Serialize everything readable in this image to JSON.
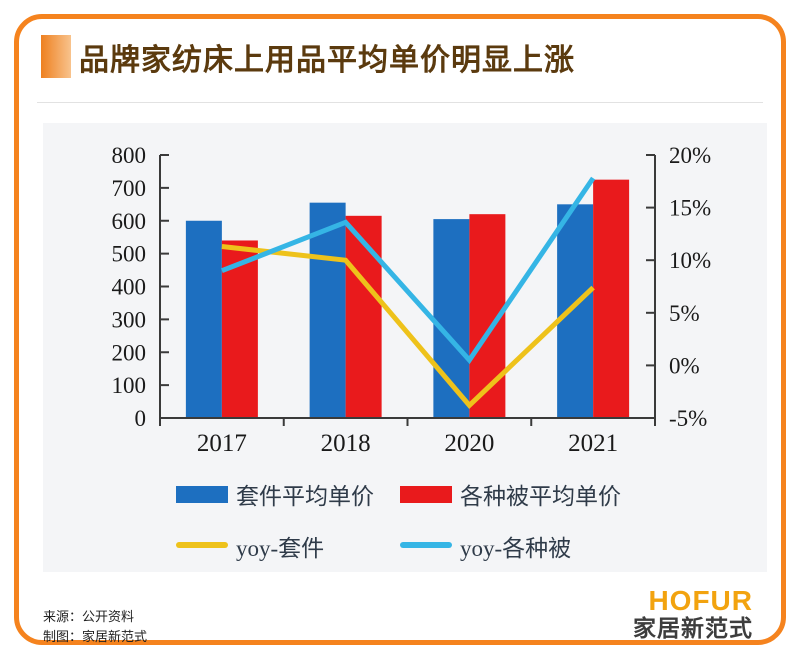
{
  "header": {
    "title": "品牌家纺床上用品平均单价明显上涨"
  },
  "chart_data": {
    "type": "bar",
    "subtype": "combo-bar-line-dual-axis",
    "title": "品牌家纺床上用品平均单价明显上涨",
    "categories": [
      "2017",
      "2018",
      "2020",
      "2021"
    ],
    "series": [
      {
        "name": "套件平均单价",
        "type": "bar",
        "axis": "left",
        "color": "#1d6fc0",
        "values": [
          600,
          655,
          605,
          650
        ]
      },
      {
        "name": "各种被平均单价",
        "type": "bar",
        "axis": "left",
        "color": "#e91a1c",
        "values": [
          540,
          615,
          620,
          725
        ]
      },
      {
        "name": "yoy-套件",
        "type": "line",
        "axis": "right",
        "color": "#eec21b",
        "values": [
          11.3,
          10.0,
          -3.8,
          7.4
        ]
      },
      {
        "name": "yoy-各种被",
        "type": "line",
        "axis": "right",
        "color": "#35b5e5",
        "values": [
          9.0,
          13.6,
          0.5,
          17.8
        ]
      }
    ],
    "left_axis": {
      "min": 0,
      "max": 800,
      "step": 100,
      "ticks": [
        "800",
        "700",
        "600",
        "500",
        "400",
        "300",
        "200",
        "100",
        "0"
      ]
    },
    "right_axis": {
      "min": -5,
      "max": 20,
      "step": 5,
      "ticks": [
        "20%",
        "15%",
        "10%",
        "5%",
        "0%",
        "-5%"
      ],
      "unit": "%"
    },
    "grid": false,
    "legend_position": "bottom",
    "axis_color": "#3a3a3a",
    "label_color": "#1a1a1a",
    "legend_text_color": "#2f3b49",
    "background": "#f4f5f7"
  },
  "footer": {
    "source": "来源：公开资料",
    "credit": "制图：家居新范式",
    "logo_name": "HOFUR",
    "logo_subtitle": "家居新范式",
    "logo_color": "#f2a30f"
  }
}
